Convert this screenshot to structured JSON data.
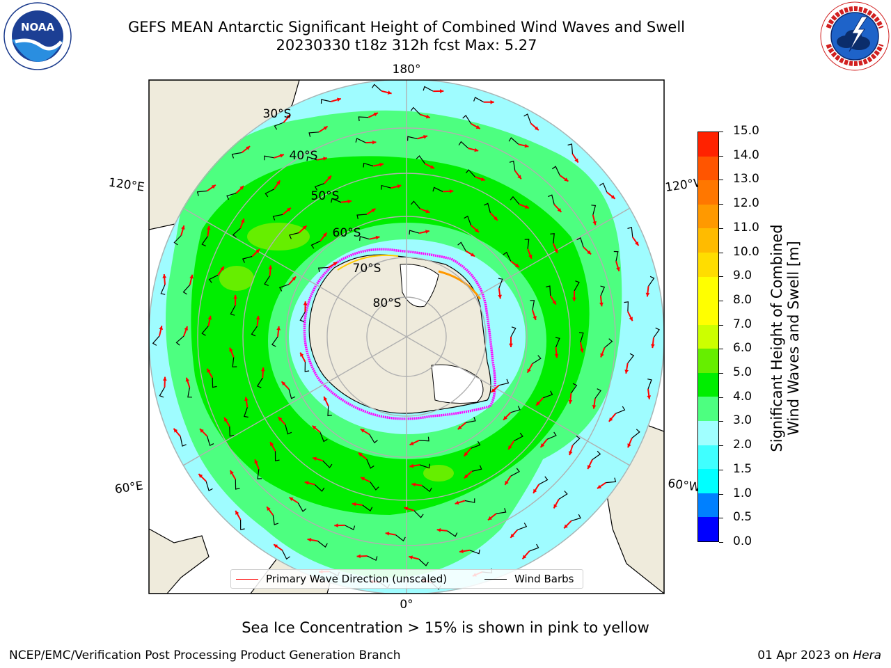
{
  "title": {
    "line1": "GEFS MEAN Antarctic Significant Height of Combined Wind Waves and Swell",
    "line2": "20230330 t18z 312h fcst   Max: 5.27"
  },
  "logos": {
    "left": {
      "name": "noaa-logo",
      "text": "NOAA",
      "ring_text": "NATIONAL OCEANIC AND ATMOSPHERIC ADMINISTRATION · U.S. DEPARTMENT OF COMMERCE"
    },
    "right": {
      "name": "nws-logo",
      "ring_text": "NATIONAL WEATHER SERVICE"
    }
  },
  "map": {
    "projection": "south-polar-stereographic",
    "longitude_labels": {
      "top": "180°",
      "bottom": "0°",
      "left_upper": "120°E",
      "left_lower": "60°E",
      "right_upper": "120°W",
      "right_lower": "60°W"
    },
    "latitude_labels": [
      "30°S",
      "40°S",
      "50°S",
      "60°S",
      "70°S",
      "80°S"
    ],
    "colors": {
      "land": "#efebdc",
      "ice_shelf": "#ffffff",
      "ice_edge": "#ff00ff",
      "wave_low": "#9ffcff",
      "wave_mid": "#4dff80",
      "wave_high": "#00ee00",
      "arrow": "#ff0000",
      "barb": "#000000",
      "grid": "#b0b0b0"
    }
  },
  "legend": {
    "items": [
      {
        "label": "Primary Wave Direction (unscaled)",
        "color": "#ff0000"
      },
      {
        "label": "Wind Barbs",
        "color": "#000000"
      }
    ]
  },
  "colorbar": {
    "label_line1": "Significant Height of Combined",
    "label_line2": "Wind Waves and Swell [m]",
    "ticks": [
      "0.0",
      "0.5",
      "1.0",
      "1.5",
      "2.0",
      "3.0",
      "4.0",
      "5.0",
      "6.0",
      "7.0",
      "8.0",
      "9.0",
      "10.0",
      "11.0",
      "12.0",
      "13.0",
      "14.0",
      "15.0"
    ],
    "colors": [
      "#0000ff",
      "#0080ff",
      "#00ffff",
      "#40ffff",
      "#a0ffff",
      "#4dff80",
      "#00ee00",
      "#66ee00",
      "#ccff00",
      "#ffff00",
      "#ffff00",
      "#ffdd00",
      "#ffbb00",
      "#ff9900",
      "#ff7700",
      "#ff5500",
      "#ff2200"
    ]
  },
  "notes": {
    "ice": "Sea Ice Concentration > 15% is shown in pink to yellow",
    "footer_left": "NCEP/EMC/Verification Post Processing Product Generation Branch",
    "footer_date": "01 Apr 2023 on ",
    "footer_host": "Hera"
  }
}
